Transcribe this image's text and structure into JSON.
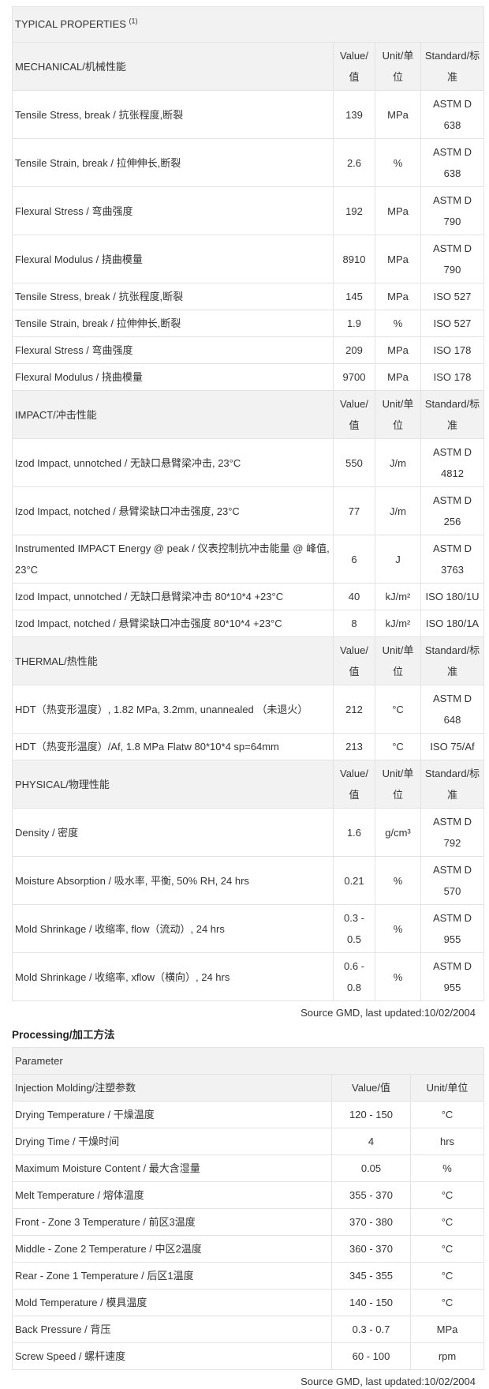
{
  "typical": {
    "title": "TYPICAL PROPERTIES",
    "footnote_mark": "(1)",
    "col_value": "Value/值",
    "col_unit": "Unit/单位",
    "col_standard": "Standard/标准",
    "sections": [
      {
        "name": "MECHANICAL/机械性能",
        "rows": [
          {
            "property": "Tensile Stress, break / 抗张程度,断裂",
            "value": "139",
            "unit": "MPa",
            "standard": "ASTM D 638"
          },
          {
            "property": "Tensile Strain, break / 拉伸伸长,断裂",
            "value": "2.6",
            "unit": "%",
            "standard": "ASTM D 638"
          },
          {
            "property": "Flexural Stress / 弯曲强度",
            "value": "192",
            "unit": "MPa",
            "standard": "ASTM D 790"
          },
          {
            "property": "Flexural Modulus / 挠曲模量",
            "value": "8910",
            "unit": "MPa",
            "standard": "ASTM D 790"
          },
          {
            "property": "Tensile Stress, break / 抗张程度,断裂",
            "value": "145",
            "unit": "MPa",
            "standard": "ISO 527"
          },
          {
            "property": "Tensile Strain, break / 拉伸伸长,断裂",
            "value": "1.9",
            "unit": "%",
            "standard": "ISO 527"
          },
          {
            "property": "Flexural Stress / 弯曲强度",
            "value": "209",
            "unit": "MPa",
            "standard": "ISO 178"
          },
          {
            "property": "Flexural Modulus / 挠曲模量",
            "value": "9700",
            "unit": "MPa",
            "standard": "ISO 178"
          }
        ]
      },
      {
        "name": "IMPACT/冲击性能",
        "rows": [
          {
            "property": "Izod Impact, unnotched / 无缺口悬臂梁冲击, 23°C",
            "value": "550",
            "unit": "J/m",
            "standard": "ASTM D 4812"
          },
          {
            "property": "Izod Impact, notched / 悬臂梁缺口冲击强度, 23°C",
            "value": "77",
            "unit": "J/m",
            "standard": "ASTM D 256"
          },
          {
            "property": "Instrumented IMPACT Energy @ peak / 仪表控制抗冲击能量 @ 峰值, 23°C",
            "value": "6",
            "unit": "J",
            "standard": "ASTM D 3763"
          },
          {
            "property": "Izod Impact, unnotched / 无缺口悬臂梁冲击 80*10*4 +23°C",
            "value": "40",
            "unit": "kJ/m²",
            "standard": "ISO 180/1U"
          },
          {
            "property": "Izod Impact, notched / 悬臂梁缺口冲击强度 80*10*4 +23°C",
            "value": "8",
            "unit": "kJ/m²",
            "standard": "ISO 180/1A"
          }
        ]
      },
      {
        "name": "THERMAL/热性能",
        "rows": [
          {
            "property": "HDT（热变形温度）, 1.82 MPa, 3.2mm, unannealed （未退火）",
            "value": "212",
            "unit": "°C",
            "standard": "ASTM D 648"
          },
          {
            "property": "HDT（热变形温度）/Af, 1.8 MPa Flatw 80*10*4 sp=64mm",
            "value": "213",
            "unit": "°C",
            "standard": "ISO 75/Af"
          }
        ]
      },
      {
        "name": "PHYSICAL/物理性能",
        "rows": [
          {
            "property": "Density / 密度",
            "value": "1.6",
            "unit": "g/cm³",
            "standard": "ASTM D 792"
          },
          {
            "property": "Moisture Absorption / 吸水率, 平衡, 50% RH, 24 hrs",
            "value": "0.21",
            "unit": "%",
            "standard": "ASTM D 570"
          },
          {
            "property": "Mold Shrinkage / 收缩率, flow（流动）, 24 hrs",
            "value": "0.3 - 0.5",
            "unit": "%",
            "standard": "ASTM D 955"
          },
          {
            "property": "Mold Shrinkage / 收缩率, xflow（横向）, 24 hrs",
            "value": "0.6 - 0.8",
            "unit": "%",
            "standard": "ASTM D 955"
          }
        ]
      }
    ],
    "source": "Source GMD, last updated:10/02/2004"
  },
  "processing": {
    "heading": "Processing/加工方法",
    "parameter_label": "Parameter",
    "section": "Injection Molding/注塑参数",
    "col_value": "Value/值",
    "col_unit": "Unit/单位",
    "rows": [
      {
        "property": "Drying Temperature / 干燥温度",
        "value": "120 - 150",
        "unit": "°C"
      },
      {
        "property": "Drying Time / 干燥时间",
        "value": "4",
        "unit": "hrs"
      },
      {
        "property": "Maximum Moisture Content / 最大含湿量",
        "value": "0.05",
        "unit": "%"
      },
      {
        "property": "Melt Temperature / 熔体温度",
        "value": "355 - 370",
        "unit": "°C"
      },
      {
        "property": "Front - Zone 3 Temperature / 前区3温度",
        "value": "370 - 380",
        "unit": "°C"
      },
      {
        "property": "Middle - Zone 2 Temperature / 中区2温度",
        "value": "360 - 370",
        "unit": "°C"
      },
      {
        "property": "Rear - Zone 1 Temperature / 后区1温度",
        "value": "345 - 355",
        "unit": "°C"
      },
      {
        "property": "Mold Temperature / 模具温度",
        "value": "140 - 150",
        "unit": "°C"
      },
      {
        "property": "Back Pressure / 背压",
        "value": "0.3 - 0.7",
        "unit": "MPa"
      },
      {
        "property": "Screw Speed / 螺杆速度",
        "value": "60 - 100",
        "unit": "rpm"
      }
    ],
    "source": "Source GMD, last updated:10/02/2004"
  }
}
